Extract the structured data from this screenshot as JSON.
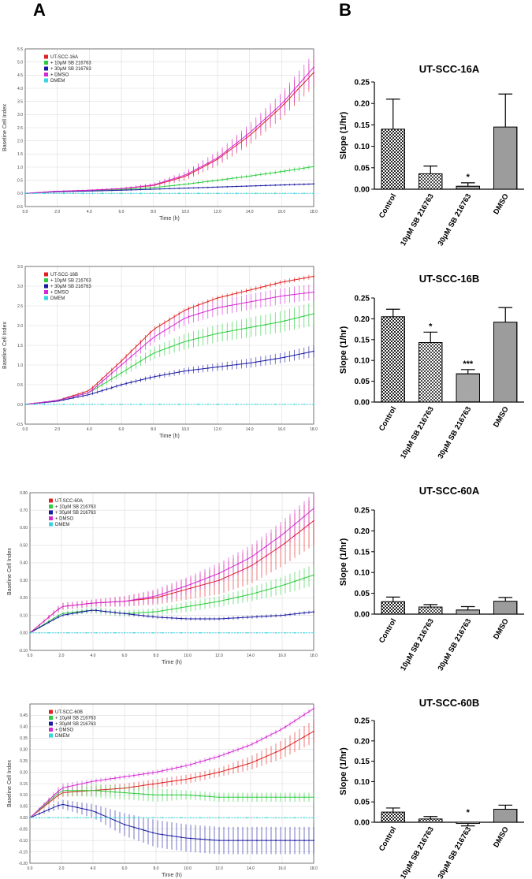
{
  "panels": {
    "a": "A",
    "b": "B"
  },
  "chart_data": [
    {
      "type": "line",
      "id": "a1",
      "xlabel": "Time (h)",
      "ylabel": "Baseline Cell Index",
      "xlim": [
        0,
        18
      ],
      "ylim": [
        -0.5,
        5.5
      ],
      "yticks": [
        "-0.5",
        "0.0",
        "0.5",
        "1.0",
        "1.5",
        "2.0",
        "2.5",
        "3.0",
        "3.5",
        "4.0",
        "4.5",
        "5.0",
        "5.5"
      ],
      "xticks": [
        "0.0",
        "2.0",
        "4.0",
        "6.0",
        "8.0",
        "10.0",
        "12.0",
        "14.0",
        "16.0",
        "18.0"
      ],
      "legend": [
        "UT-SCC-16A",
        "+ 10μM SB 216763",
        "+ 30μM SB 216763",
        "+ DMSO",
        "DMEM"
      ],
      "colors": [
        "#e02020",
        "#2ecc40",
        "#1a1aa0",
        "#d42ad4",
        "#33d6e0"
      ],
      "series": [
        {
          "name": "UT-SCC-16A",
          "x": [
            0,
            2,
            4,
            6,
            8,
            10,
            12,
            14,
            16,
            18
          ],
          "y": [
            0,
            0.08,
            0.12,
            0.18,
            0.3,
            0.65,
            1.3,
            2.2,
            3.3,
            4.6
          ],
          "err": [
            0,
            0.02,
            0.03,
            0.05,
            0.08,
            0.15,
            0.25,
            0.35,
            0.45,
            0.55
          ]
        },
        {
          "name": "+ 10μM SB 216763",
          "x": [
            0,
            2,
            4,
            6,
            8,
            10,
            12,
            14,
            16,
            18
          ],
          "y": [
            0,
            0.07,
            0.1,
            0.15,
            0.22,
            0.35,
            0.5,
            0.66,
            0.83,
            1.02
          ],
          "err": [
            0,
            0.01,
            0.02,
            0.03,
            0.04,
            0.05,
            0.06,
            0.07,
            0.08,
            0.09
          ]
        },
        {
          "name": "+ 30μM SB 216763",
          "x": [
            0,
            2,
            4,
            6,
            8,
            10,
            12,
            14,
            16,
            18
          ],
          "y": [
            0,
            0.06,
            0.09,
            0.12,
            0.16,
            0.2,
            0.24,
            0.28,
            0.32,
            0.36
          ],
          "err": [
            0,
            0.01,
            0.01,
            0.02,
            0.02,
            0.03,
            0.03,
            0.03,
            0.04,
            0.04
          ]
        },
        {
          "name": "+ DMSO",
          "x": [
            0,
            2,
            4,
            6,
            8,
            10,
            12,
            14,
            16,
            18
          ],
          "y": [
            0,
            0.08,
            0.12,
            0.18,
            0.32,
            0.7,
            1.35,
            2.3,
            3.4,
            4.8
          ],
          "err": [
            0,
            0.02,
            0.03,
            0.05,
            0.08,
            0.15,
            0.25,
            0.35,
            0.45,
            0.55
          ]
        },
        {
          "name": "DMEM",
          "x": [
            0,
            2,
            4,
            6,
            8,
            10,
            12,
            14,
            16,
            18
          ],
          "y": [
            0,
            0,
            0,
            0,
            0,
            0,
            0,
            0,
            0,
            0
          ],
          "err": [
            0,
            0,
            0,
            0,
            0,
            0,
            0,
            0,
            0,
            0
          ]
        }
      ]
    },
    {
      "type": "line",
      "id": "a2",
      "xlabel": "Time (h)",
      "ylabel": "Baseline Cell Index",
      "xlim": [
        0,
        18
      ],
      "ylim": [
        -0.5,
        3.5
      ],
      "yticks": [
        "-0.5",
        "0.0",
        "0.5",
        "1.0",
        "1.5",
        "2.0",
        "2.5",
        "3.0",
        "3.5"
      ],
      "xticks": [
        "0.0",
        "2.0",
        "4.0",
        "6.0",
        "8.0",
        "10.0",
        "12.0",
        "14.0",
        "16.0",
        "18.0"
      ],
      "legend": [
        "UT-SCC-16B",
        "+ 10μM SB 216763",
        "+ 30μM SB 216763",
        "+ DMSO",
        "DMEM"
      ],
      "colors": [
        "#e02020",
        "#2ecc40",
        "#1a1aa0",
        "#d42ad4",
        "#33d6e0"
      ],
      "series": [
        {
          "name": "UT-SCC-16B",
          "x": [
            0,
            2,
            4,
            6,
            8,
            10,
            12,
            14,
            16,
            18
          ],
          "y": [
            0,
            0.1,
            0.35,
            1.1,
            1.9,
            2.4,
            2.7,
            2.9,
            3.1,
            3.25
          ],
          "err": [
            0,
            0.02,
            0.04,
            0.06,
            0.06,
            0.06,
            0.06,
            0.06,
            0.06,
            0.06
          ]
        },
        {
          "name": "+ 10μM SB 216763",
          "x": [
            0,
            2,
            4,
            6,
            8,
            10,
            12,
            14,
            16,
            18
          ],
          "y": [
            0,
            0.1,
            0.3,
            0.8,
            1.3,
            1.6,
            1.8,
            1.95,
            2.1,
            2.3
          ],
          "err": [
            0,
            0.02,
            0.05,
            0.1,
            0.15,
            0.2,
            0.22,
            0.25,
            0.27,
            0.3
          ]
        },
        {
          "name": "+ 30μM SB 216763",
          "x": [
            0,
            2,
            4,
            6,
            8,
            10,
            12,
            14,
            16,
            18
          ],
          "y": [
            0,
            0.08,
            0.25,
            0.5,
            0.7,
            0.85,
            0.95,
            1.05,
            1.18,
            1.35
          ],
          "err": [
            0,
            0.02,
            0.04,
            0.05,
            0.06,
            0.08,
            0.1,
            0.12,
            0.13,
            0.15
          ]
        },
        {
          "name": "+ DMSO",
          "x": [
            0,
            2,
            4,
            6,
            8,
            10,
            12,
            14,
            16,
            18
          ],
          "y": [
            0,
            0.1,
            0.3,
            1.0,
            1.7,
            2.2,
            2.45,
            2.6,
            2.75,
            2.85
          ],
          "err": [
            0,
            0.02,
            0.05,
            0.1,
            0.15,
            0.18,
            0.2,
            0.2,
            0.2,
            0.2
          ]
        },
        {
          "name": "DMEM",
          "x": [
            0,
            2,
            4,
            6,
            8,
            10,
            12,
            14,
            16,
            18
          ],
          "y": [
            0,
            0,
            0,
            0,
            0,
            0,
            0,
            0,
            0,
            0
          ],
          "err": [
            0,
            0,
            0,
            0,
            0,
            0,
            0,
            0,
            0,
            0
          ]
        }
      ]
    },
    {
      "type": "line",
      "id": "a3",
      "xlabel": "Time (h)",
      "ylabel": "Baseline Cell Index",
      "xlim": [
        0,
        18
      ],
      "ylim": [
        -0.1,
        0.8
      ],
      "yticks": [
        "-0.10",
        "0.00",
        "0.10",
        "0.20",
        "0.30",
        "0.40",
        "0.50",
        "0.60",
        "0.70",
        "0.80"
      ],
      "xticks": [
        "0.0",
        "2.0",
        "4.0",
        "6.0",
        "8.0",
        "10.0",
        "12.0",
        "14.0",
        "16.0",
        "18.0"
      ],
      "legend": [
        "UT-SCC-60A",
        "+ 10μM SB 216763",
        "+ 30μM SB 216763",
        "+ DMSO",
        "DMEM"
      ],
      "colors": [
        "#e02020",
        "#2ecc40",
        "#1a1aa0",
        "#d42ad4",
        "#33d6e0"
      ],
      "series": [
        {
          "name": "UT-SCC-60A",
          "x": [
            0,
            2,
            4,
            6,
            8,
            10,
            12,
            14,
            16,
            18
          ],
          "y": [
            0,
            0.15,
            0.17,
            0.18,
            0.2,
            0.25,
            0.3,
            0.38,
            0.5,
            0.64
          ],
          "err": [
            0,
            0.02,
            0.02,
            0.03,
            0.04,
            0.06,
            0.08,
            0.1,
            0.12,
            0.14
          ]
        },
        {
          "name": "+ 10μM SB 216763",
          "x": [
            0,
            2,
            4,
            6,
            8,
            10,
            12,
            14,
            16,
            18
          ],
          "y": [
            0,
            0.11,
            0.13,
            0.11,
            0.12,
            0.15,
            0.18,
            0.22,
            0.27,
            0.33
          ],
          "err": [
            0,
            0.01,
            0.02,
            0.02,
            0.02,
            0.03,
            0.03,
            0.04,
            0.05,
            0.06
          ]
        },
        {
          "name": "+ 30μM SB 216763",
          "x": [
            0,
            2,
            4,
            6,
            8,
            10,
            12,
            14,
            16,
            18
          ],
          "y": [
            0,
            0.1,
            0.13,
            0.11,
            0.09,
            0.08,
            0.08,
            0.09,
            0.1,
            0.12
          ],
          "err": [
            0,
            0.01,
            0.01,
            0.01,
            0.01,
            0.01,
            0.01,
            0.01,
            0.01,
            0.01
          ]
        },
        {
          "name": "+ DMSO",
          "x": [
            0,
            2,
            4,
            6,
            8,
            10,
            12,
            14,
            16,
            18
          ],
          "y": [
            0,
            0.15,
            0.17,
            0.18,
            0.21,
            0.27,
            0.34,
            0.43,
            0.56,
            0.71
          ],
          "err": [
            0,
            0.02,
            0.02,
            0.03,
            0.04,
            0.05,
            0.06,
            0.07,
            0.08,
            0.09
          ]
        },
        {
          "name": "DMEM",
          "x": [
            0,
            2,
            4,
            6,
            8,
            10,
            12,
            14,
            16,
            18
          ],
          "y": [
            0,
            0,
            0,
            0,
            0,
            0,
            0,
            0,
            0,
            0
          ],
          "err": [
            0,
            0,
            0,
            0,
            0,
            0,
            0,
            0,
            0,
            0
          ]
        }
      ]
    },
    {
      "type": "line",
      "id": "a4",
      "xlabel": "Time (h)",
      "ylabel": "Baseline Cell Index",
      "xlim": [
        0,
        18
      ],
      "ylim": [
        -0.2,
        0.5
      ],
      "yticks": [
        "-0.20",
        "-0.15",
        "-0.10",
        "-0.05",
        "0.00",
        "0.05",
        "0.10",
        "0.15",
        "0.20",
        "0.25",
        "0.30",
        "0.35",
        "0.40",
        "0.45"
      ],
      "xticks": [
        "0.0",
        "2.0",
        "4.0",
        "6.0",
        "8.0",
        "10.0",
        "12.0",
        "14.0",
        "16.0",
        "18.0"
      ],
      "legend": [
        "UT-SCC-60B",
        "+ 10μM SB 216763",
        "+ 30μM SB 216763",
        "+ DMSO",
        "DMEM"
      ],
      "colors": [
        "#e02020",
        "#2ecc40",
        "#1a1aa0",
        "#d42ad4",
        "#33d6e0"
      ],
      "series": [
        {
          "name": "UT-SCC-60B",
          "x": [
            0,
            2,
            4,
            6,
            8,
            10,
            12,
            14,
            16,
            18
          ],
          "y": [
            0,
            0.11,
            0.12,
            0.13,
            0.15,
            0.17,
            0.2,
            0.24,
            0.3,
            0.38
          ],
          "err": [
            0,
            0.02,
            0.02,
            0.02,
            0.02,
            0.02,
            0.02,
            0.03,
            0.04,
            0.05
          ]
        },
        {
          "name": "+ 10μM SB 216763",
          "x": [
            0,
            2,
            4,
            6,
            8,
            10,
            12,
            14,
            16,
            18
          ],
          "y": [
            0,
            0.12,
            0.12,
            0.11,
            0.1,
            0.1,
            0.09,
            0.09,
            0.09,
            0.09
          ],
          "err": [
            0,
            0.02,
            0.03,
            0.03,
            0.03,
            0.02,
            0.02,
            0.02,
            0.02,
            0.02
          ]
        },
        {
          "name": "+ 30μM SB 216763",
          "x": [
            0,
            2,
            4,
            6,
            8,
            10,
            12,
            14,
            16,
            18
          ],
          "y": [
            0,
            0.06,
            0.03,
            -0.03,
            -0.07,
            -0.09,
            -0.1,
            -0.1,
            -0.1,
            -0.1
          ],
          "err": [
            0,
            0.02,
            0.03,
            0.05,
            0.06,
            0.06,
            0.06,
            0.06,
            0.06,
            0.06
          ]
        },
        {
          "name": "+ DMSO",
          "x": [
            0,
            2,
            4,
            6,
            8,
            10,
            12,
            14,
            16,
            18
          ],
          "y": [
            0,
            0.13,
            0.16,
            0.18,
            0.2,
            0.23,
            0.27,
            0.32,
            0.39,
            0.48
          ],
          "err": [
            0,
            0.02,
            0.01,
            0.01,
            0.01,
            0.01,
            0.01,
            0.01,
            0.01,
            0.01
          ]
        },
        {
          "name": "DMEM",
          "x": [
            0,
            2,
            4,
            6,
            8,
            10,
            12,
            14,
            16,
            18
          ],
          "y": [
            0,
            0,
            0,
            0,
            0,
            0,
            0,
            0,
            0,
            0
          ],
          "err": [
            0,
            0,
            0,
            0,
            0,
            0,
            0,
            0,
            0,
            0
          ]
        }
      ]
    },
    {
      "type": "bar",
      "id": "b1",
      "title": "UT-SCC-16A",
      "ylabel": "Slope (1/hr)",
      "ylim": [
        0,
        0.25
      ],
      "yticks": [
        "0.00",
        "0.05",
        "0.10",
        "0.15",
        "0.20",
        "0.25"
      ],
      "categories": [
        "Control",
        "10μM SB 216763",
        "30μM SB 216763",
        "DMSO"
      ],
      "values": [
        0.14,
        0.036,
        0.007,
        0.145
      ],
      "errors": [
        0.07,
        0.018,
        0.008,
        0.077
      ],
      "significance": [
        "",
        "",
        "*",
        ""
      ]
    },
    {
      "type": "bar",
      "id": "b2",
      "title": "UT-SCC-16B",
      "ylabel": "Slope (1/hr)",
      "ylim": [
        0,
        0.25
      ],
      "yticks": [
        "0.00",
        "0.05",
        "0.10",
        "0.15",
        "0.20",
        "0.25"
      ],
      "categories": [
        "Control",
        "10μM SB 216763",
        "30μM SB 216763",
        "DMSO"
      ],
      "values": [
        0.205,
        0.143,
        0.068,
        0.192
      ],
      "errors": [
        0.018,
        0.025,
        0.01,
        0.035
      ],
      "significance": [
        "",
        "*",
        "***",
        ""
      ]
    },
    {
      "type": "bar",
      "id": "b3",
      "title": "UT-SCC-60A",
      "ylabel": "Slope (1/hr)",
      "ylim": [
        0,
        0.25
      ],
      "yticks": [
        "0.00",
        "0.05",
        "0.10",
        "0.15",
        "0.20",
        "0.25"
      ],
      "categories": [
        "Control",
        "10μM SB 216763",
        "30μM SB 216763",
        "DMSO"
      ],
      "values": [
        0.03,
        0.017,
        0.01,
        0.031
      ],
      "errors": [
        0.011,
        0.006,
        0.008,
        0.009
      ],
      "significance": [
        "",
        "",
        "",
        ""
      ]
    },
    {
      "type": "bar",
      "id": "b4",
      "title": "UT-SCC-60B",
      "ylabel": "Slope (1/hr)",
      "ylim": [
        0,
        0.25
      ],
      "yticks": [
        "0.00",
        "0.05",
        "0.10",
        "0.15",
        "0.20",
        "0.25"
      ],
      "categories": [
        "Control",
        "10μM SB 216763",
        "30μM SB 216763",
        "DMSO"
      ],
      "values": [
        0.025,
        0.008,
        -0.003,
        0.032
      ],
      "errors": [
        0.01,
        0.006,
        0.006,
        0.01
      ],
      "significance": [
        "",
        "",
        "*",
        ""
      ]
    }
  ]
}
